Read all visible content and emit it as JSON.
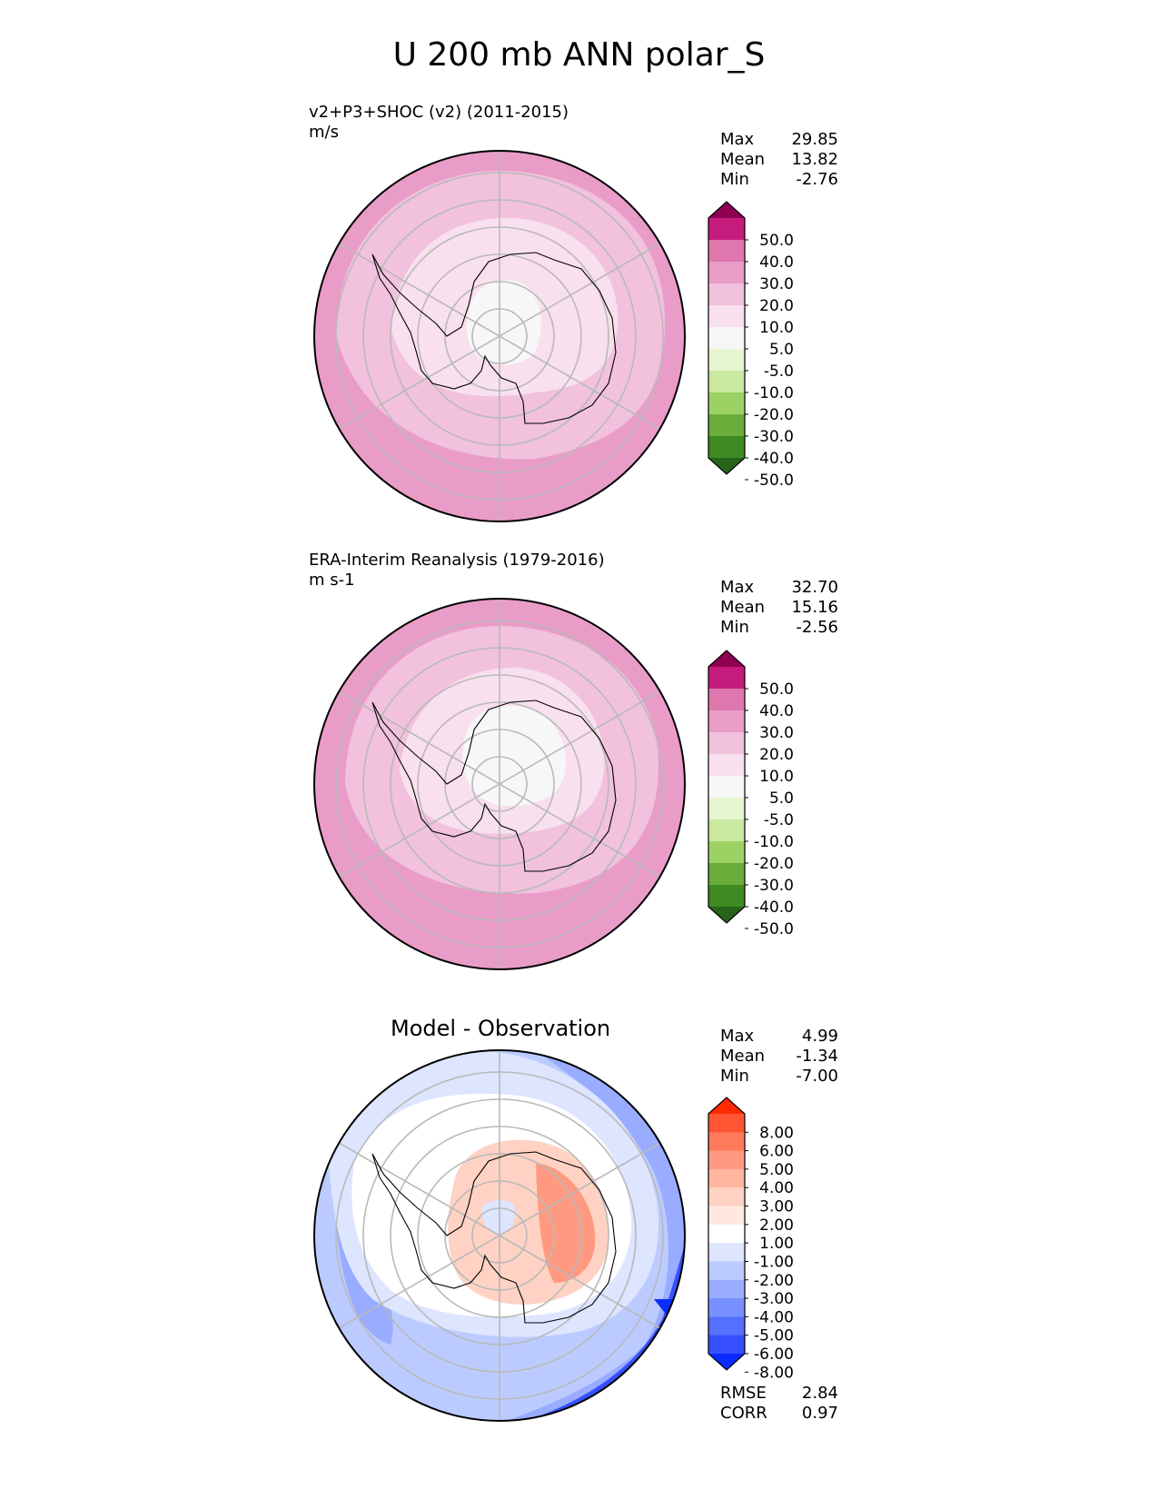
{
  "title": "U 200 mb ANN polar_S",
  "panels": [
    {
      "id": "test",
      "name": "v2+P3+SHOC (v2) (2011-2015)",
      "units": "m/s",
      "stats": [
        {
          "label": "Max",
          "value": "29.85"
        },
        {
          "label": "Mean",
          "value": "13.82"
        },
        {
          "label": "Min",
          "value": "-2.76"
        }
      ]
    },
    {
      "id": "ref",
      "name": "ERA-Interim Reanalysis (1979-2016)",
      "units": "m s-1",
      "stats": [
        {
          "label": "Max",
          "value": "32.70"
        },
        {
          "label": "Mean",
          "value": "15.16"
        },
        {
          "label": "Min",
          "value": "-2.56"
        }
      ]
    },
    {
      "id": "diff",
      "name": "Model - Observation",
      "stats": [
        {
          "label": "Max",
          "value": "4.99"
        },
        {
          "label": "Mean",
          "value": "-1.34"
        },
        {
          "label": "Min",
          "value": "-7.00"
        }
      ],
      "metrics": [
        {
          "label": "RMSE",
          "value": "2.84"
        },
        {
          "label": "CORR",
          "value": "0.97"
        }
      ]
    }
  ],
  "colorbars": {
    "field": {
      "labels": [
        "50.0",
        "40.0",
        "30.0",
        "20.0",
        "10.0",
        "5.0",
        "-5.0",
        "-10.0",
        "-20.0",
        "-30.0",
        "-40.0",
        "-50.0"
      ],
      "colors": [
        "#8e0152",
        "#c51b7d",
        "#de77ae",
        "#e99cc8",
        "#f1c1dd",
        "#f9e0ee",
        "#f7f7f7",
        "#e6f5d0",
        "#c9e8a0",
        "#9cd264",
        "#6aad3a",
        "#3e8b21",
        "#276419"
      ]
    },
    "diff": {
      "labels": [
        "8.00",
        "6.00",
        "5.00",
        "4.00",
        "3.00",
        "2.00",
        "1.00",
        "-1.00",
        "-2.00",
        "-3.00",
        "-4.00",
        "-5.00",
        "-6.00",
        "-8.00"
      ],
      "colors": [
        "#ff2a00",
        "#ff5533",
        "#ff7a5a",
        "#ff9a80",
        "#ffb5a0",
        "#ffd2c4",
        "#ffe8e0",
        "#ffffff",
        "#dde5ff",
        "#bccbff",
        "#99acff",
        "#7890ff",
        "#5570ff",
        "#3650ff",
        "#0a2cff"
      ]
    }
  }
}
